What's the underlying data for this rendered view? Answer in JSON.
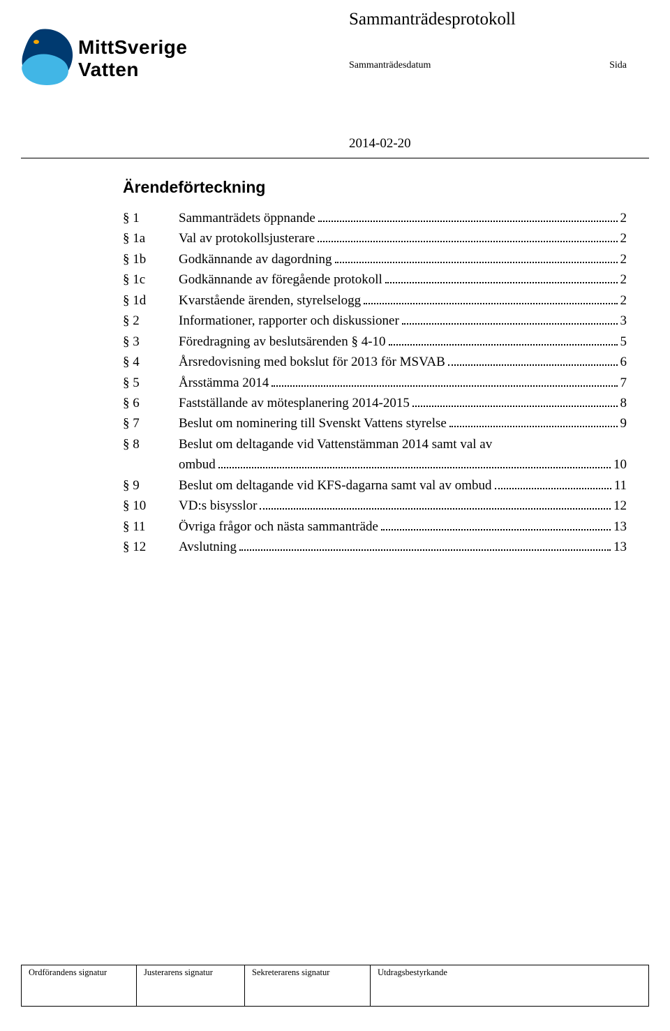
{
  "colors": {
    "text": "#000000",
    "background": "#ffffff",
    "logo_dark_blue": "#003a70",
    "logo_light_blue": "#41b6e6",
    "logo_orange": "#f7a600",
    "rule": "#000000"
  },
  "typography": {
    "body_family": "Times New Roman",
    "heading_family": "Arial",
    "logo_family": "Arial",
    "doc_title_fontsize_pt": 18,
    "meta_fontsize_pt": 10,
    "date_fontsize_pt": 14,
    "heading_fontsize_pt": 17,
    "toc_fontsize_pt": 14,
    "sig_fontsize_pt": 9
  },
  "header": {
    "doc_title": "Sammanträdesprotokoll",
    "meta_datum_label": "Sammanträdesdatum",
    "meta_sida_label": "Sida",
    "date": "2014-02-20"
  },
  "logo": {
    "line1": "MittSverige",
    "line2": "Vatten"
  },
  "content_heading": "Ärendeförteckning",
  "toc": [
    {
      "key": "§ 1",
      "text": "Sammanträdets öppnande",
      "page": "2"
    },
    {
      "key": "§ 1a",
      "text": "Val av protokollsjusterare",
      "page": "2"
    },
    {
      "key": "§ 1b",
      "text": "Godkännande av dagordning",
      "page": "2"
    },
    {
      "key": "§ 1c",
      "text": "Godkännande av föregående protokoll",
      "page": "2"
    },
    {
      "key": "§ 1d",
      "text": "Kvarstående ärenden, styrelselogg",
      "page": "2"
    },
    {
      "key": "§ 2",
      "text": "Informationer, rapporter och diskussioner",
      "page": "3"
    },
    {
      "key": "§ 3",
      "text": "Föredragning av beslutsärenden § 4-10",
      "page": "5"
    },
    {
      "key": "§ 4",
      "text": "Årsredovisning med bokslut för 2013 för MSVAB",
      "page": "6"
    },
    {
      "key": "§ 5",
      "text": "Årsstämma 2014",
      "page": "7"
    },
    {
      "key": "§ 6",
      "text": "Fastställande av mötesplanering 2014-2015",
      "page": "8"
    },
    {
      "key": "§ 7",
      "text": "Beslut om nominering till Svenskt Vattens styrelse",
      "page": "9"
    },
    {
      "key": "§ 8",
      "text": "Beslut om deltagande vid Vattenstämman 2014 samt val av ombud",
      "page": "10",
      "multiline": true
    },
    {
      "key": "§ 9",
      "text": "Beslut om deltagande vid KFS-dagarna samt val av ombud",
      "page": "11"
    },
    {
      "key": "§ 10",
      "text": "VD:s bisysslor",
      "page": "12"
    },
    {
      "key": "§ 11",
      "text": "Övriga frågor och nästa sammanträde",
      "page": "13"
    },
    {
      "key": "§ 12",
      "text": "Avslutning",
      "page": "13"
    }
  ],
  "signatures": {
    "c1": "Ordförandens signatur",
    "c2": "Justerarens signatur",
    "c3": "Sekreterarens signatur",
    "c4": "Utdragsbestyrkande"
  }
}
